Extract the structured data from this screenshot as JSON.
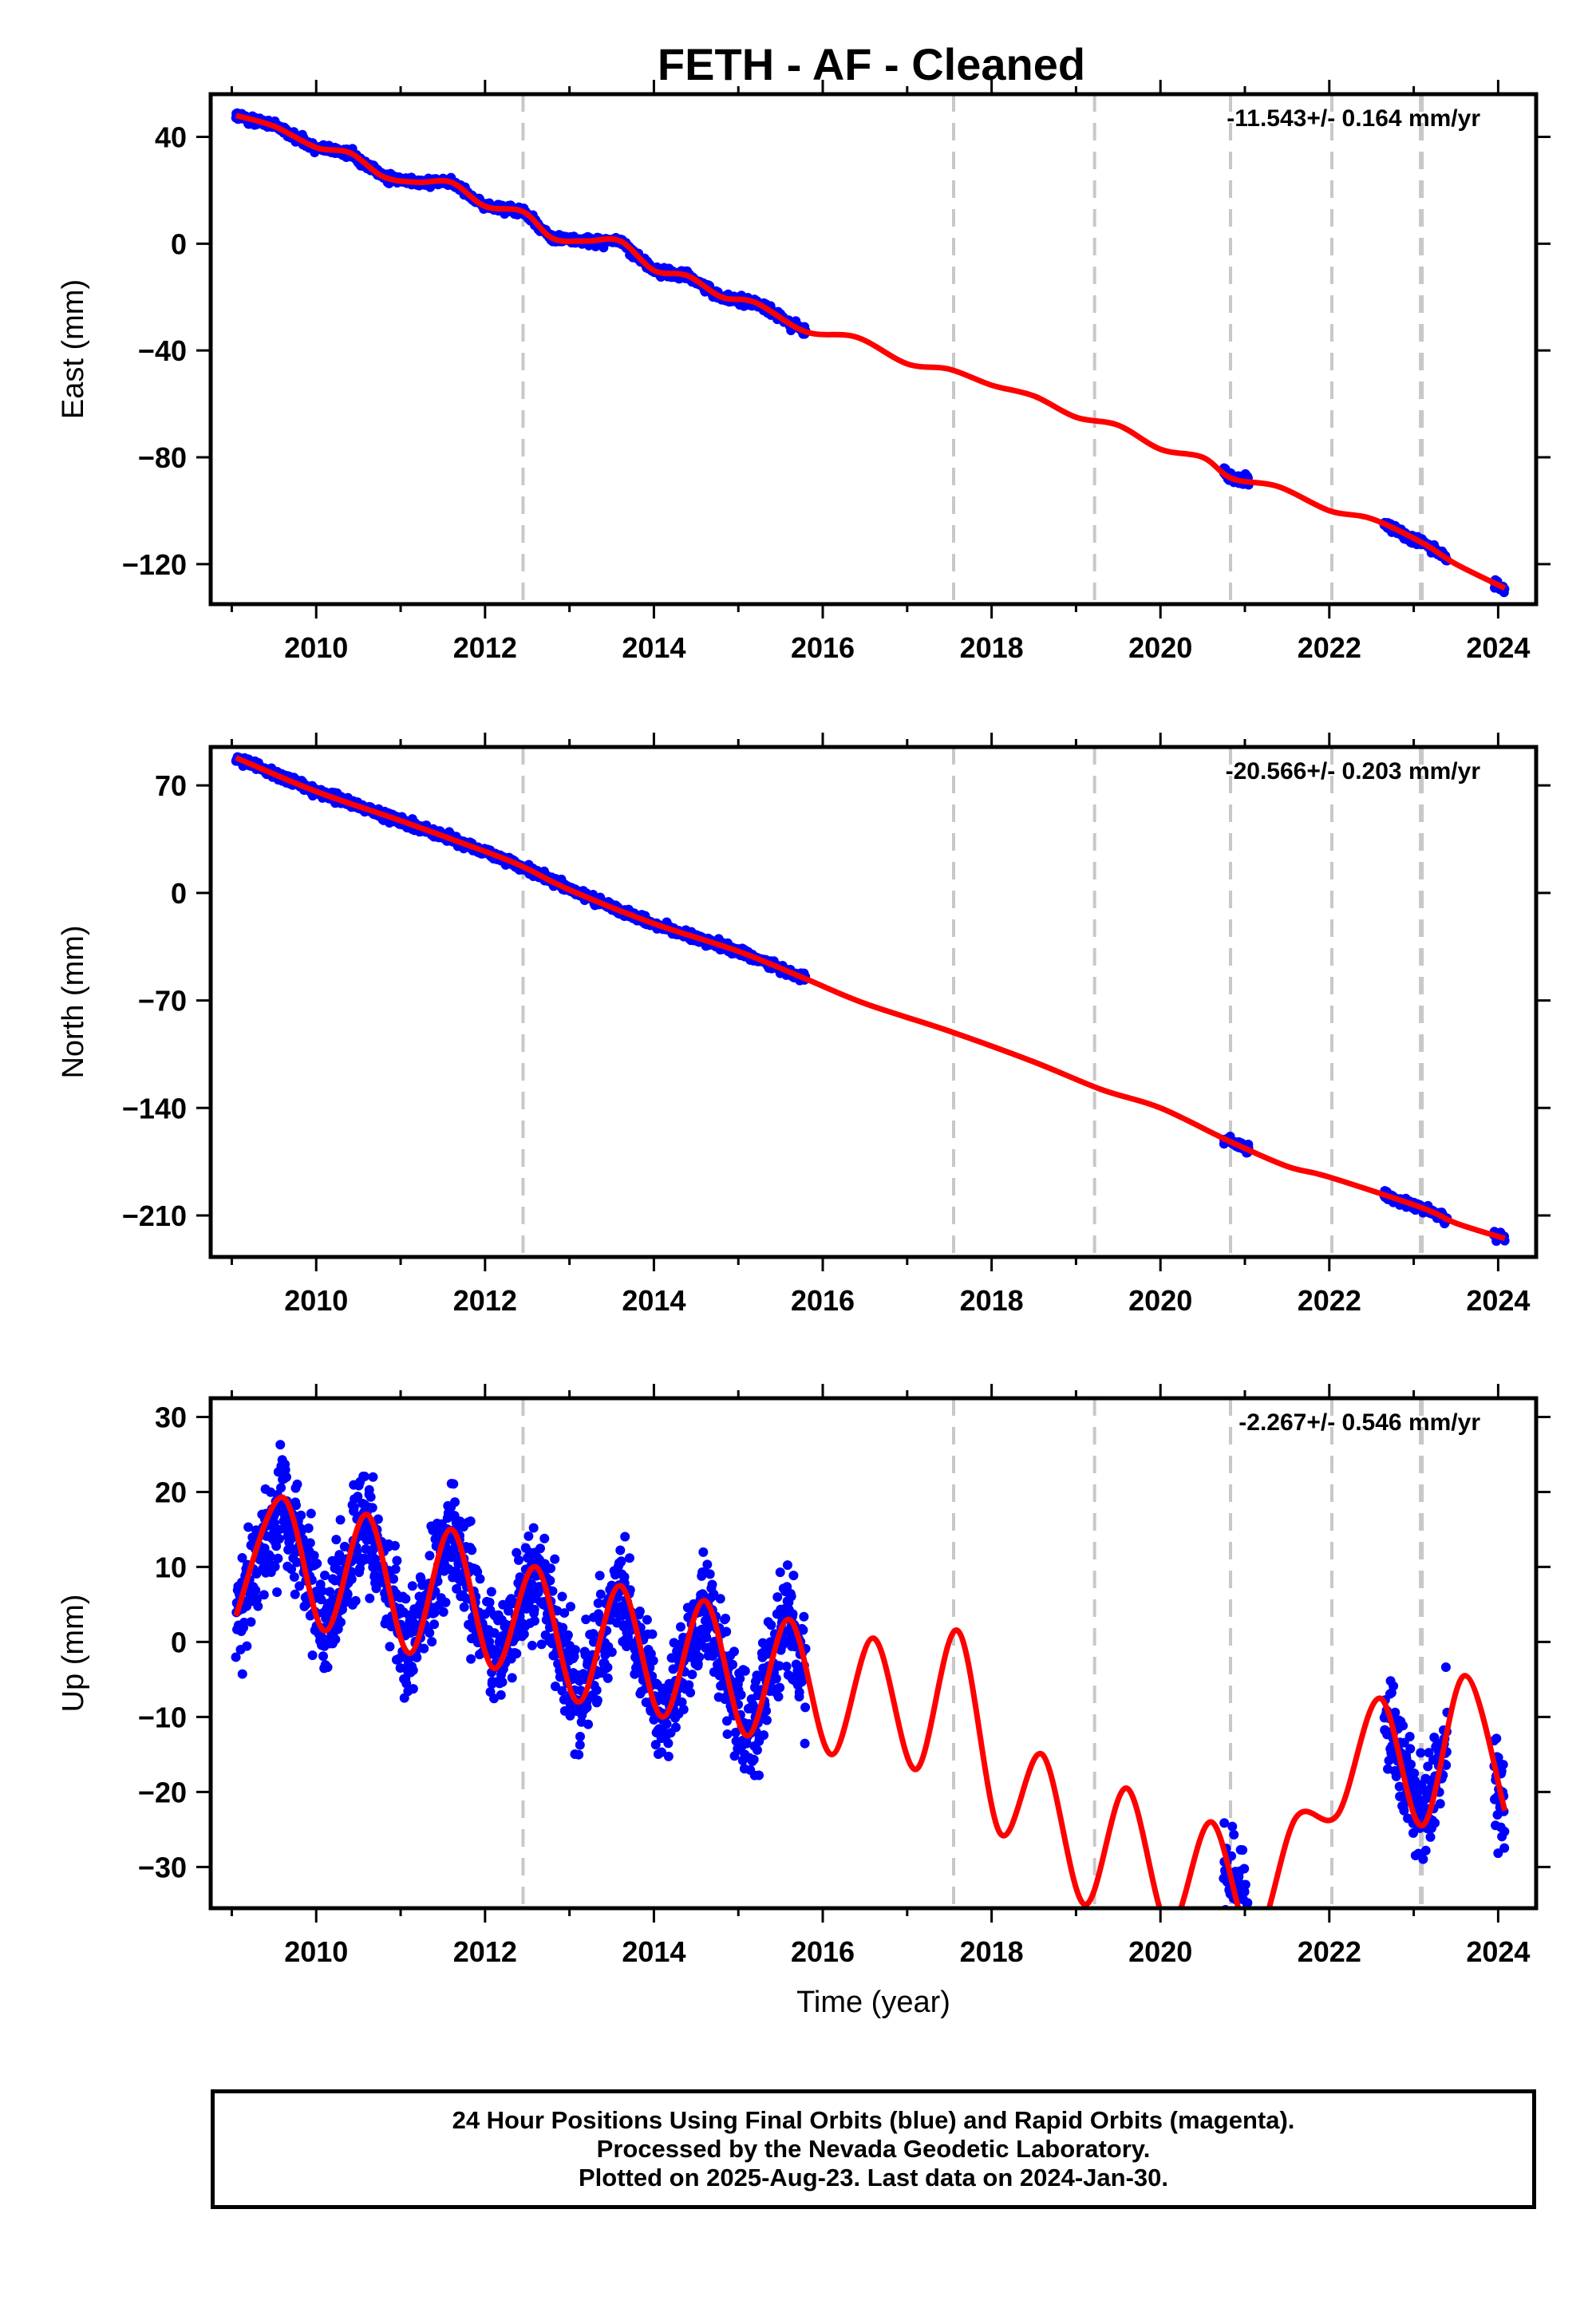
{
  "title": "FETH  - AF - Cleaned",
  "footer": {
    "line1": "24 Hour Positions Using Final Orbits (blue) and Rapid Orbits (magenta).",
    "line2": "Processed by the Nevada Geodetic Laboratory.",
    "line3": "Plotted on 2025-Aug-23. Last data on 2024-Jan-30."
  },
  "colors": {
    "observations": "#0000ff",
    "model": "#ff0000",
    "steps": "#c8c8c8",
    "frame": "#000000"
  },
  "chart_data": [
    {
      "type": "scatter",
      "panel": "East",
      "ylabel": "East (mm)",
      "xlabel": "",
      "rate_label": "-11.543+/- 0.164 mm/yr",
      "xlim": [
        2008.75,
        2024.45
      ],
      "ylim": [
        -135,
        56
      ],
      "xticks": [
        2010,
        2012,
        2014,
        2016,
        2018,
        2020,
        2022,
        2024
      ],
      "yticks": [
        -120,
        -80,
        -40,
        0,
        40
      ],
      "step_lines_x": [
        2012.45,
        2017.55,
        2019.22,
        2020.83,
        2022.03,
        2023.08,
        2023.1
      ],
      "series": [
        {
          "kind": "observations (daily)",
          "color": "#0000ff",
          "segments": [
            [
              2009.05,
              2015.8
            ],
            [
              2020.75,
              2021.05
            ],
            [
              2022.65,
              2023.4
            ],
            [
              2023.95,
              2024.08
            ]
          ]
        },
        {
          "kind": "model",
          "color": "#ff0000",
          "x": [
            2009.05,
            2009.5,
            2010.0,
            2010.4,
            2010.8,
            2011.2,
            2011.6,
            2012.0,
            2012.45,
            2012.8,
            2013.2,
            2013.6,
            2014.0,
            2014.4,
            2014.8,
            2015.2,
            2015.8,
            2016.4,
            2017.0,
            2017.5,
            2018.0,
            2018.5,
            2019.0,
            2019.5,
            2020.0,
            2020.5,
            2020.85,
            2021.4,
            2022.0,
            2022.5,
            2023.1,
            2023.5,
            2024.08
          ],
          "y": [
            48,
            44,
            36,
            34,
            25,
            23,
            23,
            14,
            12,
            2,
            1,
            1,
            -10,
            -12,
            -20,
            -22,
            -33,
            -35,
            -45,
            -47,
            -53,
            -57,
            -65,
            -68,
            -77,
            -80,
            -88,
            -91,
            -100,
            -103,
            -112,
            -120,
            -129
          ]
        }
      ]
    },
    {
      "type": "scatter",
      "panel": "North",
      "ylabel": "North (mm)",
      "xlabel": "",
      "rate_label": "-20.566+/- 0.203 mm/yr",
      "xlim": [
        2008.75,
        2024.45
      ],
      "ylim": [
        -237,
        95
      ],
      "xticks": [
        2010,
        2012,
        2014,
        2016,
        2018,
        2020,
        2022,
        2024
      ],
      "yticks": [
        -210,
        -140,
        -70,
        0,
        70
      ],
      "step_lines_x": [
        2012.45,
        2017.55,
        2019.22,
        2020.83,
        2022.03,
        2023.08,
        2023.1
      ],
      "series": [
        {
          "kind": "observations (daily)",
          "color": "#0000ff",
          "segments": [
            [
              2009.05,
              2015.8
            ],
            [
              2020.75,
              2021.05
            ],
            [
              2022.65,
              2023.4
            ],
            [
              2023.95,
              2024.08
            ]
          ]
        },
        {
          "kind": "model",
          "color": "#ff0000",
          "x": [
            2009.05,
            2010.0,
            2011.0,
            2012.0,
            2012.45,
            2013.0,
            2014.0,
            2015.0,
            2015.8,
            2016.5,
            2017.5,
            2018.5,
            2019.3,
            2020.0,
            2020.83,
            2021.5,
            2022.0,
            2023.1,
            2023.5,
            2024.08
          ],
          "y": [
            88,
            66,
            47,
            27,
            17,
            2,
            -20,
            -38,
            -56,
            -72,
            -90,
            -110,
            -128,
            -140,
            -162,
            -178,
            -185,
            -205,
            -215,
            -225
          ]
        }
      ]
    },
    {
      "type": "scatter",
      "panel": "Up",
      "ylabel": "Up (mm)",
      "xlabel": "Time (year)",
      "rate_label": "-2.267+/- 0.546 mm/yr",
      "xlim": [
        2008.75,
        2024.45
      ],
      "ylim": [
        -35.5,
        32.5
      ],
      "xticks": [
        2010,
        2012,
        2014,
        2016,
        2018,
        2020,
        2022,
        2024
      ],
      "yticks": [
        -30,
        -20,
        -10,
        0,
        10,
        20,
        30
      ],
      "step_lines_x": [
        2012.45,
        2017.55,
        2019.22,
        2020.83,
        2022.03,
        2023.08,
        2023.1
      ],
      "series": [
        {
          "kind": "observations (daily)",
          "color": "#0000ff",
          "segments": [
            [
              2009.05,
              2015.8
            ],
            [
              2020.75,
              2021.05
            ],
            [
              2022.65,
              2023.4
            ],
            [
              2023.95,
              2024.08
            ]
          ]
        },
        {
          "kind": "model",
          "color": "#ff0000",
          "x": [
            2009.05,
            2009.6,
            2010.1,
            2010.6,
            2011.1,
            2011.6,
            2012.1,
            2012.6,
            2013.1,
            2013.6,
            2014.1,
            2014.6,
            2015.1,
            2015.6,
            2016.1,
            2016.6,
            2017.1,
            2017.6,
            2018.1,
            2018.6,
            2019.1,
            2019.6,
            2020.1,
            2020.6,
            2021.1,
            2021.6,
            2022.1,
            2022.6,
            2023.1,
            2023.6,
            2024.08
          ],
          "y": [
            3.5,
            19.3,
            1.5,
            17,
            -1.5,
            15,
            -3.5,
            10,
            -8,
            7.5,
            -10,
            5.5,
            -12.5,
            3,
            -15,
            0.5,
            -17,
            1.5,
            -25.5,
            -15,
            -35,
            -19.5,
            -38,
            -24,
            -40,
            -23.5,
            -23,
            -7.5,
            -24.5,
            -4.5,
            -22.5
          ]
        }
      ]
    }
  ]
}
